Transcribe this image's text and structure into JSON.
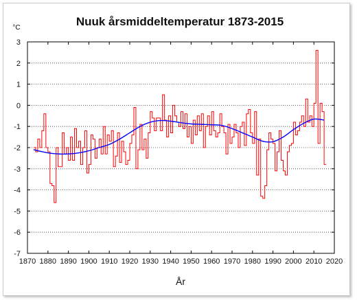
{
  "chart_data": {
    "type": "line",
    "title": "Nuuk årsmiddeltemperatur 1873-2015",
    "ylabel": "°C",
    "xlabel": "År",
    "xlim": [
      1870,
      2020
    ],
    "ylim": [
      -7,
      3
    ],
    "x_ticks": [
      "1870",
      "1880",
      "1890",
      "1900",
      "1910",
      "1920",
      "1930",
      "1940",
      "1950",
      "1960",
      "1970",
      "1980",
      "1990",
      "2000",
      "2010",
      "2020"
    ],
    "y_ticks": [
      "-7",
      "-6",
      "-5",
      "-4",
      "-3",
      "-2",
      "-1",
      "0",
      "1",
      "2",
      "3"
    ],
    "grid": "horizontal dotted",
    "colors": {
      "annual": "#ff0000",
      "smooth": "#0000ff"
    },
    "series": [
      {
        "type": "step",
        "color": "#ff0000",
        "x": [
          1873,
          1874,
          1875,
          1876,
          1877,
          1878,
          1879,
          1880,
          1881,
          1882,
          1883,
          1884,
          1885,
          1886,
          1887,
          1888,
          1889,
          1890,
          1891,
          1892,
          1893,
          1894,
          1895,
          1896,
          1897,
          1898,
          1899,
          1900,
          1901,
          1902,
          1903,
          1904,
          1905,
          1906,
          1907,
          1908,
          1909,
          1910,
          1911,
          1912,
          1913,
          1914,
          1915,
          1916,
          1917,
          1918,
          1919,
          1920,
          1921,
          1922,
          1923,
          1924,
          1925,
          1926,
          1927,
          1928,
          1929,
          1930,
          1931,
          1932,
          1933,
          1934,
          1935,
          1936,
          1937,
          1938,
          1939,
          1940,
          1941,
          1942,
          1943,
          1944,
          1945,
          1946,
          1947,
          1948,
          1949,
          1950,
          1951,
          1952,
          1953,
          1954,
          1955,
          1956,
          1957,
          1958,
          1959,
          1960,
          1961,
          1962,
          1963,
          1964,
          1965,
          1966,
          1967,
          1968,
          1969,
          1970,
          1971,
          1972,
          1973,
          1974,
          1975,
          1976,
          1977,
          1978,
          1979,
          1980,
          1981,
          1982,
          1983,
          1984,
          1985,
          1986,
          1987,
          1988,
          1989,
          1990,
          1991,
          1992,
          1993,
          1994,
          1995,
          1996,
          1997,
          1998,
          1999,
          2000,
          2001,
          2002,
          2003,
          2004,
          2005,
          2006,
          2007,
          2008,
          2009,
          2010,
          2011,
          2012,
          2013,
          2014,
          2015
        ],
        "values": [
          -2.0,
          -2.2,
          -1.6,
          -2.0,
          -1.2,
          -0.4,
          -2.0,
          -2.2,
          -3.7,
          -3.8,
          -4.6,
          -2.0,
          -2.9,
          -2.9,
          -1.3,
          -2.3,
          -2.0,
          -2.6,
          -1.5,
          -2.6,
          -1.1,
          -2.0,
          -1.7,
          -2.8,
          -2.0,
          -1.2,
          -3.2,
          -2.8,
          -1.4,
          -1.6,
          -2.5,
          -2.0,
          -1.6,
          -2.3,
          -1.0,
          -2.3,
          -1.4,
          -1.7,
          -1.2,
          -2.9,
          -2.4,
          -1.3,
          -2.7,
          -1.7,
          -2.2,
          -2.8,
          -2.6,
          -1.8,
          -1.4,
          -0.1,
          -3.0,
          -2.1,
          -0.9,
          -2.1,
          -1.6,
          -2.5,
          -1.3,
          -0.3,
          -0.6,
          -1.2,
          -0.6,
          -0.6,
          -1.2,
          0.5,
          -0.7,
          -1.5,
          -0.5,
          -1.3,
          0.0,
          -0.5,
          -0.8,
          -1.0,
          -0.3,
          -1.1,
          -0.4,
          -1.5,
          -1.0,
          -1.8,
          -0.7,
          -1.4,
          -0.5,
          -1.2,
          -0.4,
          -2.0,
          -1.0,
          -0.5,
          -1.4,
          -0.3,
          -1.2,
          -1.5,
          -1.3,
          -0.4,
          -1.0,
          -1.3,
          -2.3,
          -0.9,
          -1.8,
          -1.5,
          -0.9,
          -1.3,
          -2.0,
          -1.0,
          -0.8,
          -1.9,
          -0.4,
          -0.2,
          -1.3,
          -1.8,
          -0.3,
          -3.3,
          -1.6,
          -4.3,
          -4.4,
          -3.8,
          -2.1,
          -1.3,
          -1.6,
          -1.8,
          -3.1,
          -2.2,
          -1.2,
          -2.6,
          -3.1,
          -3.3,
          -2.2,
          -1.9,
          -1.8,
          -0.8,
          -1.4,
          -1.2,
          -0.8,
          -0.5,
          -1.0,
          0.3,
          -0.8,
          -0.5,
          -1.0,
          0.1,
          2.6,
          -1.8,
          0.1,
          -0.3,
          -2.8
        ]
      },
      {
        "type": "smooth",
        "color": "#0000ff",
        "x": [
          1873,
          1880,
          1885,
          1890,
          1895,
          1900,
          1905,
          1910,
          1915,
          1920,
          1925,
          1930,
          1935,
          1940,
          1945,
          1950,
          1955,
          1960,
          1965,
          1970,
          1975,
          1980,
          1985,
          1990,
          1995,
          2000,
          2005,
          2010,
          2015
        ],
        "values": [
          -2.1,
          -2.25,
          -2.3,
          -2.3,
          -2.25,
          -2.15,
          -2.0,
          -1.85,
          -1.6,
          -1.3,
          -1.0,
          -0.8,
          -0.72,
          -0.75,
          -0.82,
          -0.88,
          -0.9,
          -0.92,
          -0.95,
          -1.1,
          -1.3,
          -1.5,
          -1.7,
          -1.72,
          -1.5,
          -1.15,
          -0.85,
          -0.65,
          -0.7
        ]
      }
    ]
  }
}
